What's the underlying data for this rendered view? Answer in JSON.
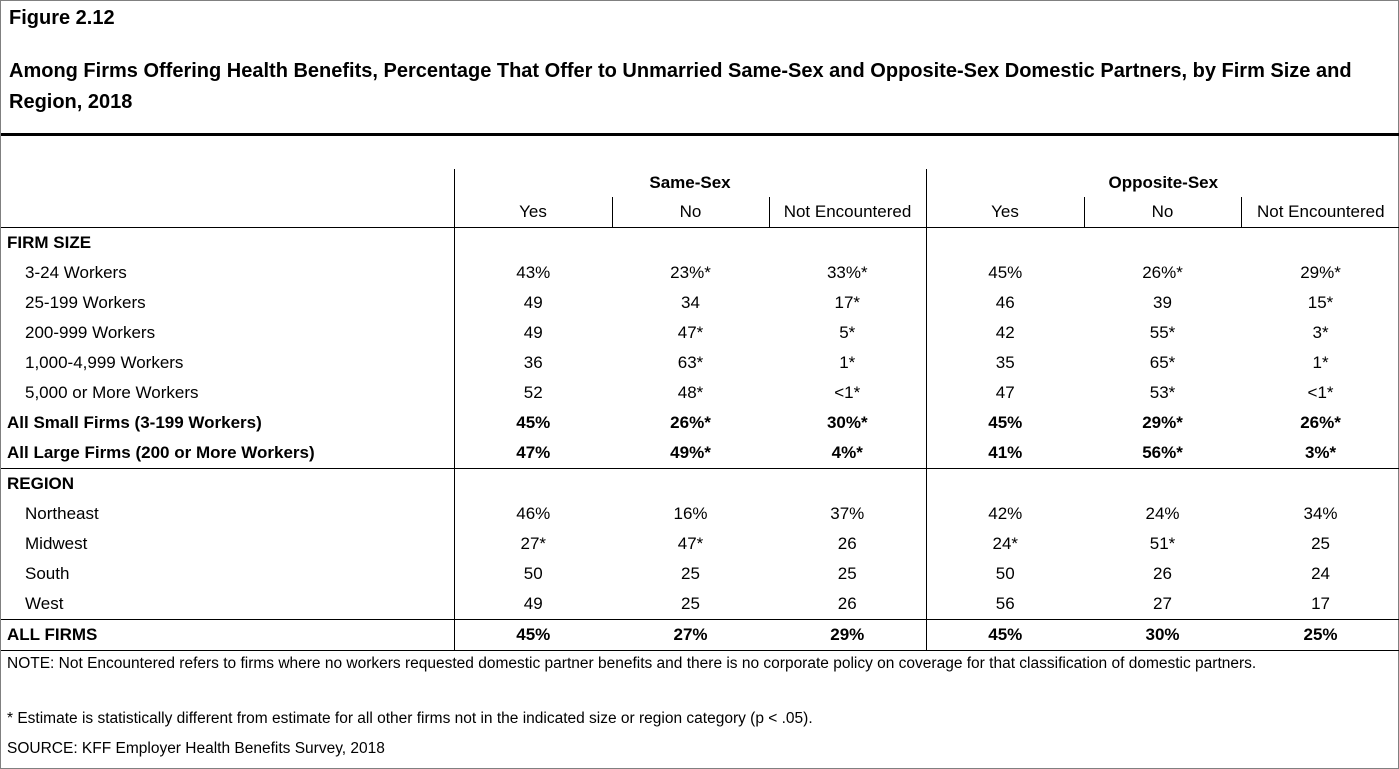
{
  "figure_label": "Figure 2.12",
  "title": "Among Firms Offering Health Benefits, Percentage That Offer to Unmarried Same-Sex and Opposite-Sex Domestic Partners, by Firm Size and Region, 2018",
  "groups": [
    "Same-Sex",
    "Opposite-Sex"
  ],
  "subheaders": [
    "Yes",
    "No",
    "Not Encountered",
    "Yes",
    "No",
    "Not Encountered"
  ],
  "sections": {
    "firm_size": "FIRM SIZE",
    "region": "REGION"
  },
  "rows": {
    "r1": {
      "label": "3-24 Workers",
      "values": [
        "43%",
        "23%*",
        "33%*",
        "45%",
        "26%*",
        "29%*"
      ]
    },
    "r2": {
      "label": "25-199 Workers",
      "values": [
        "49",
        "34",
        "17*",
        "46",
        "39",
        "15*"
      ]
    },
    "r3": {
      "label": "200-999 Workers",
      "values": [
        "49",
        "47*",
        "5*",
        "42",
        "55*",
        "3*"
      ]
    },
    "r4": {
      "label": "1,000-4,999 Workers",
      "values": [
        "36",
        "63*",
        "1*",
        "35",
        "65*",
        "1*"
      ]
    },
    "r5": {
      "label": "5,000 or More Workers",
      "values": [
        "52",
        "48*",
        "<1*",
        "47",
        "53*",
        "<1*"
      ]
    },
    "r6": {
      "label": "All Small Firms (3-199 Workers)",
      "values": [
        "45%",
        "26%*",
        "30%*",
        "45%",
        "29%*",
        "26%*"
      ]
    },
    "r7": {
      "label": "All Large Firms (200 or More Workers)",
      "values": [
        "47%",
        "49%*",
        "4%*",
        "41%",
        "56%*",
        "3%*"
      ]
    },
    "r8": {
      "label": "Northeast",
      "values": [
        "46%",
        "16%",
        "37%",
        "42%",
        "24%",
        "34%"
      ]
    },
    "r9": {
      "label": "Midwest",
      "values": [
        "27*",
        "47*",
        "26",
        "24*",
        "51*",
        "25"
      ]
    },
    "r10": {
      "label": "South",
      "values": [
        "50",
        "25",
        "25",
        "50",
        "26",
        "24"
      ]
    },
    "r11": {
      "label": "West",
      "values": [
        "49",
        "25",
        "26",
        "56",
        "27",
        "17"
      ]
    },
    "r12": {
      "label": "ALL FIRMS",
      "values": [
        "45%",
        "27%",
        "29%",
        "45%",
        "30%",
        "25%"
      ]
    }
  },
  "note": "NOTE: Not Encountered refers to firms where no workers requested domestic partner benefits and there is no corporate policy on coverage for that classification of domestic partners.",
  "footnote": "* Estimate is statistically different from estimate for all other firms not in the indicated size or region category (p < .05).",
  "source": "SOURCE: KFF Employer Health Benefits Survey, 2018"
}
